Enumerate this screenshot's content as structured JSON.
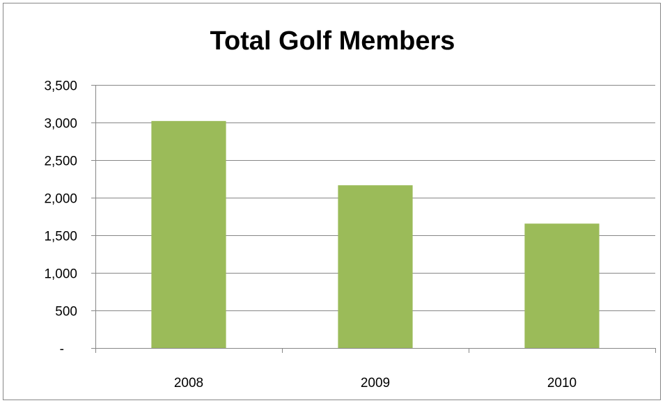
{
  "chart_data": {
    "type": "bar",
    "title": "Total Golf Members",
    "categories": [
      "2008",
      "2009",
      "2010"
    ],
    "values": [
      3020,
      2165,
      1655
    ],
    "ylim": [
      0,
      3500
    ],
    "y_ticks": [
      0,
      500,
      1000,
      1500,
      2000,
      2500,
      3000,
      3500
    ],
    "y_tick_labels": [
      "-",
      "500",
      "1,000",
      "1,500",
      "2,000",
      "2,500",
      "3,000",
      "3,500"
    ],
    "xlabel": "",
    "ylabel": "",
    "grid": true,
    "legend": "none",
    "bar_color": "#9BBB59",
    "grid_color": "#868686"
  }
}
